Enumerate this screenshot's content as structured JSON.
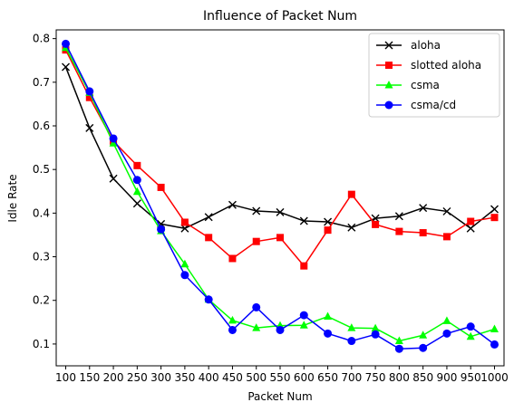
{
  "chart_data": {
    "type": "line",
    "title": "Influence of Packet Num",
    "xlabel": "Packet Num",
    "ylabel": "Idle Rate",
    "x": [
      100,
      150,
      200,
      250,
      300,
      350,
      400,
      450,
      500,
      550,
      600,
      650,
      700,
      750,
      800,
      850,
      900,
      950,
      1000
    ],
    "ylim": [
      0.05,
      0.82
    ],
    "yticks": [
      0.1,
      0.2,
      0.3,
      0.4,
      0.5,
      0.6,
      0.7,
      0.8
    ],
    "grid": false,
    "legend_position": "top-right",
    "series": [
      {
        "name": "aloha",
        "color": "#000000",
        "marker": "x",
        "values": [
          0.735,
          0.595,
          0.479,
          0.422,
          0.375,
          0.365,
          0.391,
          0.419,
          0.405,
          0.402,
          0.382,
          0.38,
          0.367,
          0.388,
          0.393,
          0.412,
          0.404,
          0.365,
          0.409
        ]
      },
      {
        "name": "slotted aloha",
        "color": "#ff0000",
        "marker": "square",
        "values": [
          0.774,
          0.665,
          0.565,
          0.509,
          0.459,
          0.379,
          0.344,
          0.296,
          0.335,
          0.344,
          0.279,
          0.361,
          0.443,
          0.374,
          0.358,
          0.355,
          0.346,
          0.381,
          0.39
        ]
      },
      {
        "name": "csma",
        "color": "#00ff00",
        "marker": "triangle",
        "values": [
          0.779,
          0.676,
          0.56,
          0.449,
          0.359,
          0.283,
          0.202,
          0.154,
          0.137,
          0.142,
          0.143,
          0.163,
          0.137,
          0.136,
          0.107,
          0.12,
          0.153,
          0.117,
          0.134
        ]
      },
      {
        "name": "csma/cd",
        "color": "#0000ff",
        "marker": "circle",
        "values": [
          0.788,
          0.679,
          0.571,
          0.476,
          0.363,
          0.258,
          0.202,
          0.132,
          0.184,
          0.132,
          0.166,
          0.124,
          0.107,
          0.122,
          0.089,
          0.091,
          0.124,
          0.14,
          0.099
        ]
      }
    ]
  }
}
